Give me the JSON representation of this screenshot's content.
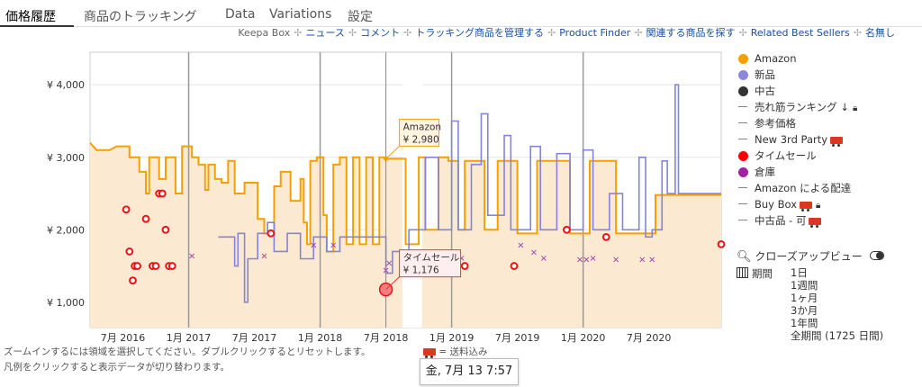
{
  "tabs": [
    {
      "label": "価格履歴",
      "active": true
    },
    {
      "label": "商品のトラッキング"
    },
    {
      "label": "Data"
    },
    {
      "label": "Variations"
    },
    {
      "label": "設定"
    }
  ],
  "links": {
    "keepa_box": "Keepa Box",
    "news": "ニュース",
    "comments": "コメント",
    "manage_tracking": "トラッキング商品を管理する",
    "product_finder": "Product Finder",
    "find_related": "関連する商品を探す",
    "related_best_sellers": "Related Best Sellers",
    "anonymous": "名無し"
  },
  "legend": [
    {
      "label": "Amazon",
      "style": "dot",
      "color": "#f5a000"
    },
    {
      "label": "新品",
      "style": "dot",
      "color": "#8888dd"
    },
    {
      "label": "中古",
      "style": "dot",
      "color": "#333333"
    },
    {
      "label": "売れ筋ランキング ↓",
      "style": "dash",
      "lock": true
    },
    {
      "label": "参考価格",
      "style": "dash"
    },
    {
      "label": "New 3rd Party",
      "style": "dash",
      "truck": true
    },
    {
      "label": "タイムセール",
      "style": "dot",
      "color": "#ff0000"
    },
    {
      "label": "倉庫",
      "style": "dot",
      "color": "#a020a0"
    },
    {
      "label": "Amazon による配達",
      "style": "dash"
    },
    {
      "label": "Buy Box",
      "style": "dash",
      "truck": true,
      "lock": true
    },
    {
      "label": "中古品 - 可",
      "style": "dash",
      "truck": true
    }
  ],
  "zoom": {
    "label": "クローズアップビュー"
  },
  "period": {
    "label": "期間",
    "options": [
      "1日",
      "1週間",
      "1ヶ月",
      "3か月",
      "1年間",
      "全期間 (1725 日間)"
    ]
  },
  "hints": {
    "line1": "ズームインするには領域を選択してください。ダブルクリックするとリセットします。",
    "line2": "凡例をクリックすると表示データが切り替わります。",
    "shipping": "= 送料込み"
  },
  "tooltip": {
    "date": "金, 7月 13 7:57",
    "amazon_label": "Amazon",
    "amazon_price": "¥ 2,980",
    "deal_label": "タイムセール",
    "deal_price": "¥ 1,176"
  },
  "chart_data": {
    "type": "line",
    "currency": "¥",
    "x_ticks": [
      "7月 2016",
      "1月 2017",
      "7月 2017",
      "1月 2018",
      "7月 2018",
      "1月 2019",
      "7月 2019",
      "1月 2020",
      "7月 2020"
    ],
    "x_tick_index": [
      0.5,
      1.5,
      2.5,
      3.5,
      4.5,
      5.5,
      6.5,
      7.5,
      8.5
    ],
    "x_range": [
      0,
      9.6
    ],
    "ylim": [
      650,
      4450
    ],
    "y_ticks": [
      1000,
      2000,
      3000,
      4000
    ],
    "y_tick_labels": [
      "¥ 1,000",
      "¥ 2,000",
      "¥ 3,000",
      "¥ 4,000"
    ],
    "series": [
      {
        "name": "Amazon",
        "color": "#f5a000",
        "fill": "#fce9d2",
        "points": [
          [
            0,
            3200
          ],
          [
            0.1,
            3100
          ],
          [
            0.3,
            3100
          ],
          [
            0.4,
            3150
          ],
          [
            0.6,
            3150
          ],
          [
            0.6,
            3000
          ],
          [
            0.75,
            3000
          ],
          [
            0.75,
            2800
          ],
          [
            0.85,
            2800
          ],
          [
            0.85,
            2500
          ],
          [
            0.9,
            2500
          ],
          [
            0.9,
            3000
          ],
          [
            1.05,
            3000
          ],
          [
            1.05,
            2700
          ],
          [
            1.15,
            2700
          ],
          [
            1.15,
            3000
          ],
          [
            1.3,
            3000
          ],
          [
            1.3,
            2500
          ],
          [
            1.4,
            2500
          ],
          [
            1.4,
            3150
          ],
          [
            1.55,
            3150
          ],
          [
            1.55,
            3000
          ],
          [
            1.65,
            3000
          ],
          [
            1.65,
            2900
          ],
          [
            1.75,
            2900
          ],
          [
            1.75,
            2550
          ],
          [
            1.8,
            2550
          ],
          [
            1.8,
            2900
          ],
          [
            1.9,
            2900
          ],
          [
            1.9,
            2700
          ],
          [
            2.0,
            2700
          ],
          [
            2.0,
            2650
          ],
          [
            2.1,
            2650
          ],
          [
            2.1,
            2950
          ],
          [
            2.2,
            2950
          ],
          [
            2.2,
            2500
          ],
          [
            2.35,
            2500
          ],
          [
            2.35,
            2650
          ],
          [
            2.55,
            2650
          ],
          [
            2.55,
            2150
          ],
          [
            2.65,
            2150
          ],
          [
            2.65,
            1950
          ],
          [
            2.8,
            1950
          ],
          [
            2.8,
            2600
          ],
          [
            2.9,
            2600
          ],
          [
            2.9,
            2800
          ],
          [
            3.05,
            2800
          ],
          [
            3.05,
            2400
          ],
          [
            3.2,
            2400
          ],
          [
            3.2,
            2700
          ],
          [
            3.25,
            2700
          ],
          [
            3.25,
            2100
          ],
          [
            3.3,
            2100
          ],
          [
            3.3,
            1800
          ],
          [
            3.35,
            1800
          ],
          [
            3.35,
            2950
          ],
          [
            3.45,
            2950
          ],
          [
            3.45,
            3000
          ],
          [
            3.55,
            3000
          ],
          [
            3.55,
            2200
          ],
          [
            3.6,
            2200
          ],
          [
            3.6,
            1700
          ],
          [
            3.7,
            1700
          ],
          [
            3.7,
            2900
          ],
          [
            3.8,
            2900
          ],
          [
            3.8,
            3000
          ],
          [
            3.9,
            3000
          ],
          [
            3.9,
            1800
          ],
          [
            4.0,
            1800
          ],
          [
            4.0,
            3000
          ],
          [
            4.1,
            3000
          ],
          [
            4.1,
            1800
          ],
          [
            4.2,
            1800
          ],
          [
            4.2,
            3000
          ],
          [
            4.3,
            3000
          ],
          [
            4.3,
            1800
          ],
          [
            4.4,
            1800
          ],
          [
            4.4,
            3000
          ],
          [
            4.5,
            3000
          ],
          [
            4.5,
            2980
          ],
          [
            4.8,
            2980
          ],
          [
            4.8,
            1800
          ],
          [
            5.0,
            1800
          ],
          [
            5.0,
            3000
          ],
          [
            5.1,
            3000
          ],
          [
            5.1,
            2000
          ],
          [
            5.3,
            2000
          ],
          [
            5.3,
            3000
          ],
          [
            5.45,
            3000
          ],
          [
            5.45,
            2950
          ],
          [
            5.6,
            2950
          ],
          [
            5.6,
            2000
          ],
          [
            5.7,
            2000
          ],
          [
            5.7,
            2950
          ],
          [
            6.0,
            2950
          ],
          [
            6.0,
            2000
          ],
          [
            6.2,
            2000
          ],
          [
            6.2,
            2950
          ],
          [
            6.5,
            2950
          ],
          [
            6.5,
            1950
          ],
          [
            6.8,
            1950
          ],
          [
            6.8,
            2950
          ],
          [
            7.3,
            2950
          ],
          [
            7.3,
            1950
          ],
          [
            7.6,
            1950
          ],
          [
            7.6,
            2950
          ],
          [
            8.0,
            2950
          ],
          [
            8.0,
            1950
          ],
          [
            8.6,
            1950
          ],
          [
            8.6,
            2480
          ],
          [
            9.6,
            2480
          ]
        ]
      },
      {
        "name": "新品",
        "color": "#8484d8",
        "points": [
          [
            1.95,
            1900
          ],
          [
            2.2,
            1900
          ],
          [
            2.2,
            1500
          ],
          [
            2.25,
            1500
          ],
          [
            2.25,
            1950
          ],
          [
            2.35,
            1950
          ],
          [
            2.35,
            1000
          ],
          [
            2.4,
            1000
          ],
          [
            2.4,
            1600
          ],
          [
            2.55,
            1600
          ],
          [
            2.55,
            1950
          ],
          [
            2.7,
            1950
          ],
          [
            2.7,
            2100
          ],
          [
            2.8,
            2100
          ],
          [
            2.8,
            1700
          ],
          [
            3.0,
            1700
          ],
          [
            3.0,
            1950
          ],
          [
            3.2,
            1950
          ],
          [
            3.2,
            1600
          ],
          [
            3.4,
            1600
          ],
          [
            3.4,
            1900
          ],
          [
            3.6,
            1900
          ],
          [
            3.6,
            1700
          ],
          [
            3.8,
            1700
          ],
          [
            3.8,
            1900
          ],
          [
            4.5,
            1900
          ],
          [
            4.5,
            1400
          ],
          [
            4.6,
            1400
          ],
          [
            4.6,
            1700
          ],
          [
            4.85,
            1700
          ],
          [
            4.85,
            2000
          ],
          [
            5.1,
            2000
          ],
          [
            5.1,
            3000
          ],
          [
            5.3,
            3000
          ],
          [
            5.3,
            2000
          ],
          [
            5.5,
            2000
          ],
          [
            5.5,
            3500
          ],
          [
            5.6,
            3500
          ],
          [
            5.6,
            2000
          ],
          [
            5.8,
            2000
          ],
          [
            5.8,
            2900
          ],
          [
            5.95,
            2900
          ],
          [
            5.95,
            3600
          ],
          [
            6.05,
            3600
          ],
          [
            6.05,
            2200
          ],
          [
            6.3,
            2200
          ],
          [
            6.3,
            3300
          ],
          [
            6.4,
            3300
          ],
          [
            6.4,
            2000
          ],
          [
            6.7,
            2000
          ],
          [
            6.7,
            3150
          ],
          [
            6.85,
            3150
          ],
          [
            6.85,
            2000
          ],
          [
            7.1,
            2000
          ],
          [
            7.1,
            3050
          ],
          [
            7.3,
            3050
          ],
          [
            7.3,
            2000
          ],
          [
            7.5,
            2000
          ],
          [
            7.5,
            3100
          ],
          [
            7.65,
            3100
          ],
          [
            7.65,
            2000
          ],
          [
            7.9,
            2000
          ],
          [
            7.9,
            2500
          ],
          [
            8.1,
            2500
          ],
          [
            8.1,
            2000
          ],
          [
            8.35,
            2000
          ],
          [
            8.35,
            3000
          ],
          [
            8.45,
            3000
          ],
          [
            8.45,
            1900
          ],
          [
            8.55,
            1900
          ],
          [
            8.55,
            2000
          ],
          [
            8.7,
            2000
          ],
          [
            8.7,
            2950
          ],
          [
            8.78,
            2950
          ],
          [
            8.78,
            2500
          ],
          [
            8.9,
            2500
          ],
          [
            8.9,
            4000
          ],
          [
            8.95,
            4000
          ],
          [
            8.95,
            2500
          ],
          [
            9.6,
            2500
          ]
        ]
      }
    ],
    "deals": [
      [
        0.55,
        2280
      ],
      [
        0.6,
        1700
      ],
      [
        0.65,
        1300
      ],
      [
        0.68,
        1500
      ],
      [
        0.72,
        1500
      ],
      [
        0.85,
        2150
      ],
      [
        0.95,
        1500
      ],
      [
        1.0,
        1500
      ],
      [
        1.05,
        2500
      ],
      [
        1.1,
        2500
      ],
      [
        1.15,
        2000
      ],
      [
        1.2,
        1500
      ],
      [
        1.25,
        1500
      ],
      [
        2.75,
        1950
      ],
      [
        4.5,
        1176
      ],
      [
        5.7,
        1500
      ],
      [
        6.45,
        1500
      ],
      [
        7.25,
        2000
      ],
      [
        7.85,
        1900
      ],
      [
        9.6,
        1800
      ]
    ],
    "warehouse": [
      [
        1.55,
        1650
      ],
      [
        2.65,
        1650
      ],
      [
        3.4,
        1800
      ],
      [
        3.7,
        1800
      ],
      [
        4.5,
        1450
      ],
      [
        4.55,
        1550
      ],
      [
        5.65,
        1620
      ],
      [
        6.55,
        1800
      ],
      [
        6.75,
        1700
      ],
      [
        6.9,
        1620
      ],
      [
        7.45,
        1600
      ],
      [
        7.55,
        1600
      ],
      [
        7.65,
        1620
      ],
      [
        8.0,
        1600
      ],
      [
        8.4,
        1600
      ],
      [
        8.55,
        1600
      ]
    ],
    "gap_regions": [
      [
        4.75,
        5.05
      ]
    ],
    "highlight": {
      "x": 4.5,
      "amazon": 2980,
      "deal": 1176
    }
  }
}
